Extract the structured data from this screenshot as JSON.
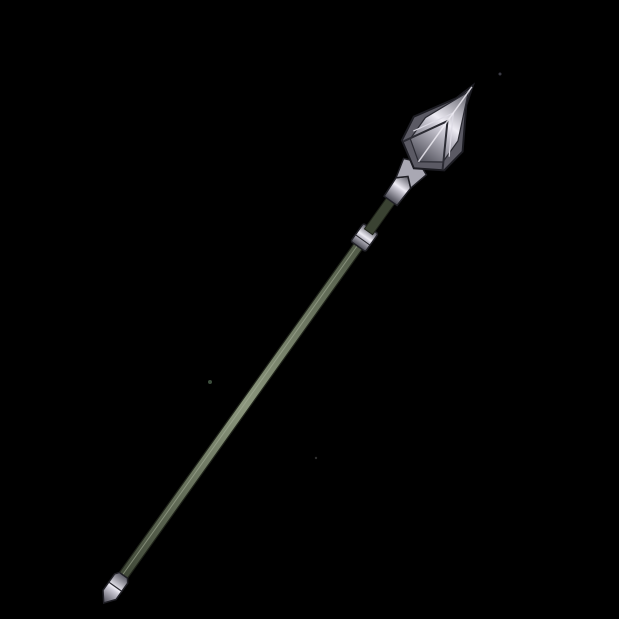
{
  "item": {
    "icon": "spear-icon",
    "background_color": "#000000",
    "shaft_color": "#6f7a63",
    "shaft_highlight": "#98a08c",
    "metal_dark": "#3f3f48",
    "metal_mid": "#8f8e98",
    "metal_light": "#e6e4ee"
  }
}
